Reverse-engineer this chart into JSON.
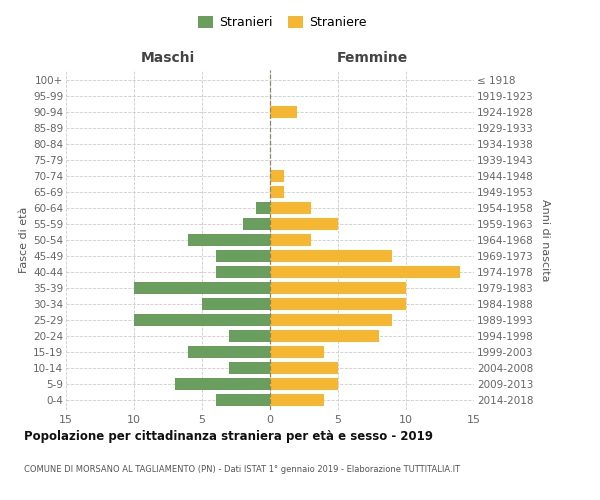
{
  "age_groups": [
    "0-4",
    "5-9",
    "10-14",
    "15-19",
    "20-24",
    "25-29",
    "30-34",
    "35-39",
    "40-44",
    "45-49",
    "50-54",
    "55-59",
    "60-64",
    "65-69",
    "70-74",
    "75-79",
    "80-84",
    "85-89",
    "90-94",
    "95-99",
    "100+"
  ],
  "birth_years": [
    "2014-2018",
    "2009-2013",
    "2004-2008",
    "1999-2003",
    "1994-1998",
    "1989-1993",
    "1984-1988",
    "1979-1983",
    "1974-1978",
    "1969-1973",
    "1964-1968",
    "1959-1963",
    "1954-1958",
    "1949-1953",
    "1944-1948",
    "1939-1943",
    "1934-1938",
    "1929-1933",
    "1924-1928",
    "1919-1923",
    "≤ 1918"
  ],
  "maschi": [
    4,
    7,
    3,
    6,
    3,
    10,
    5,
    10,
    4,
    4,
    6,
    2,
    1,
    0,
    0,
    0,
    0,
    0,
    0,
    0,
    0
  ],
  "femmine": [
    4,
    5,
    5,
    4,
    8,
    9,
    10,
    10,
    14,
    9,
    3,
    5,
    3,
    1,
    1,
    0,
    0,
    0,
    2,
    0,
    0
  ],
  "maschi_color": "#6a9e5e",
  "femmine_color": "#f5b731",
  "title": "Popolazione per cittadinanza straniera per età e sesso - 2019",
  "subtitle": "COMUNE DI MORSANO AL TAGLIAMENTO (PN) - Dati ISTAT 1° gennaio 2019 - Elaborazione TUTTITALIA.IT",
  "header_left": "Maschi",
  "header_right": "Femmine",
  "ylabel_left": "Fasce di età",
  "ylabel_right": "Anni di nascita",
  "legend_stranieri": "Stranieri",
  "legend_straniere": "Straniere",
  "xlim": 15,
  "bg_color": "#ffffff",
  "grid_color": "#cccccc"
}
